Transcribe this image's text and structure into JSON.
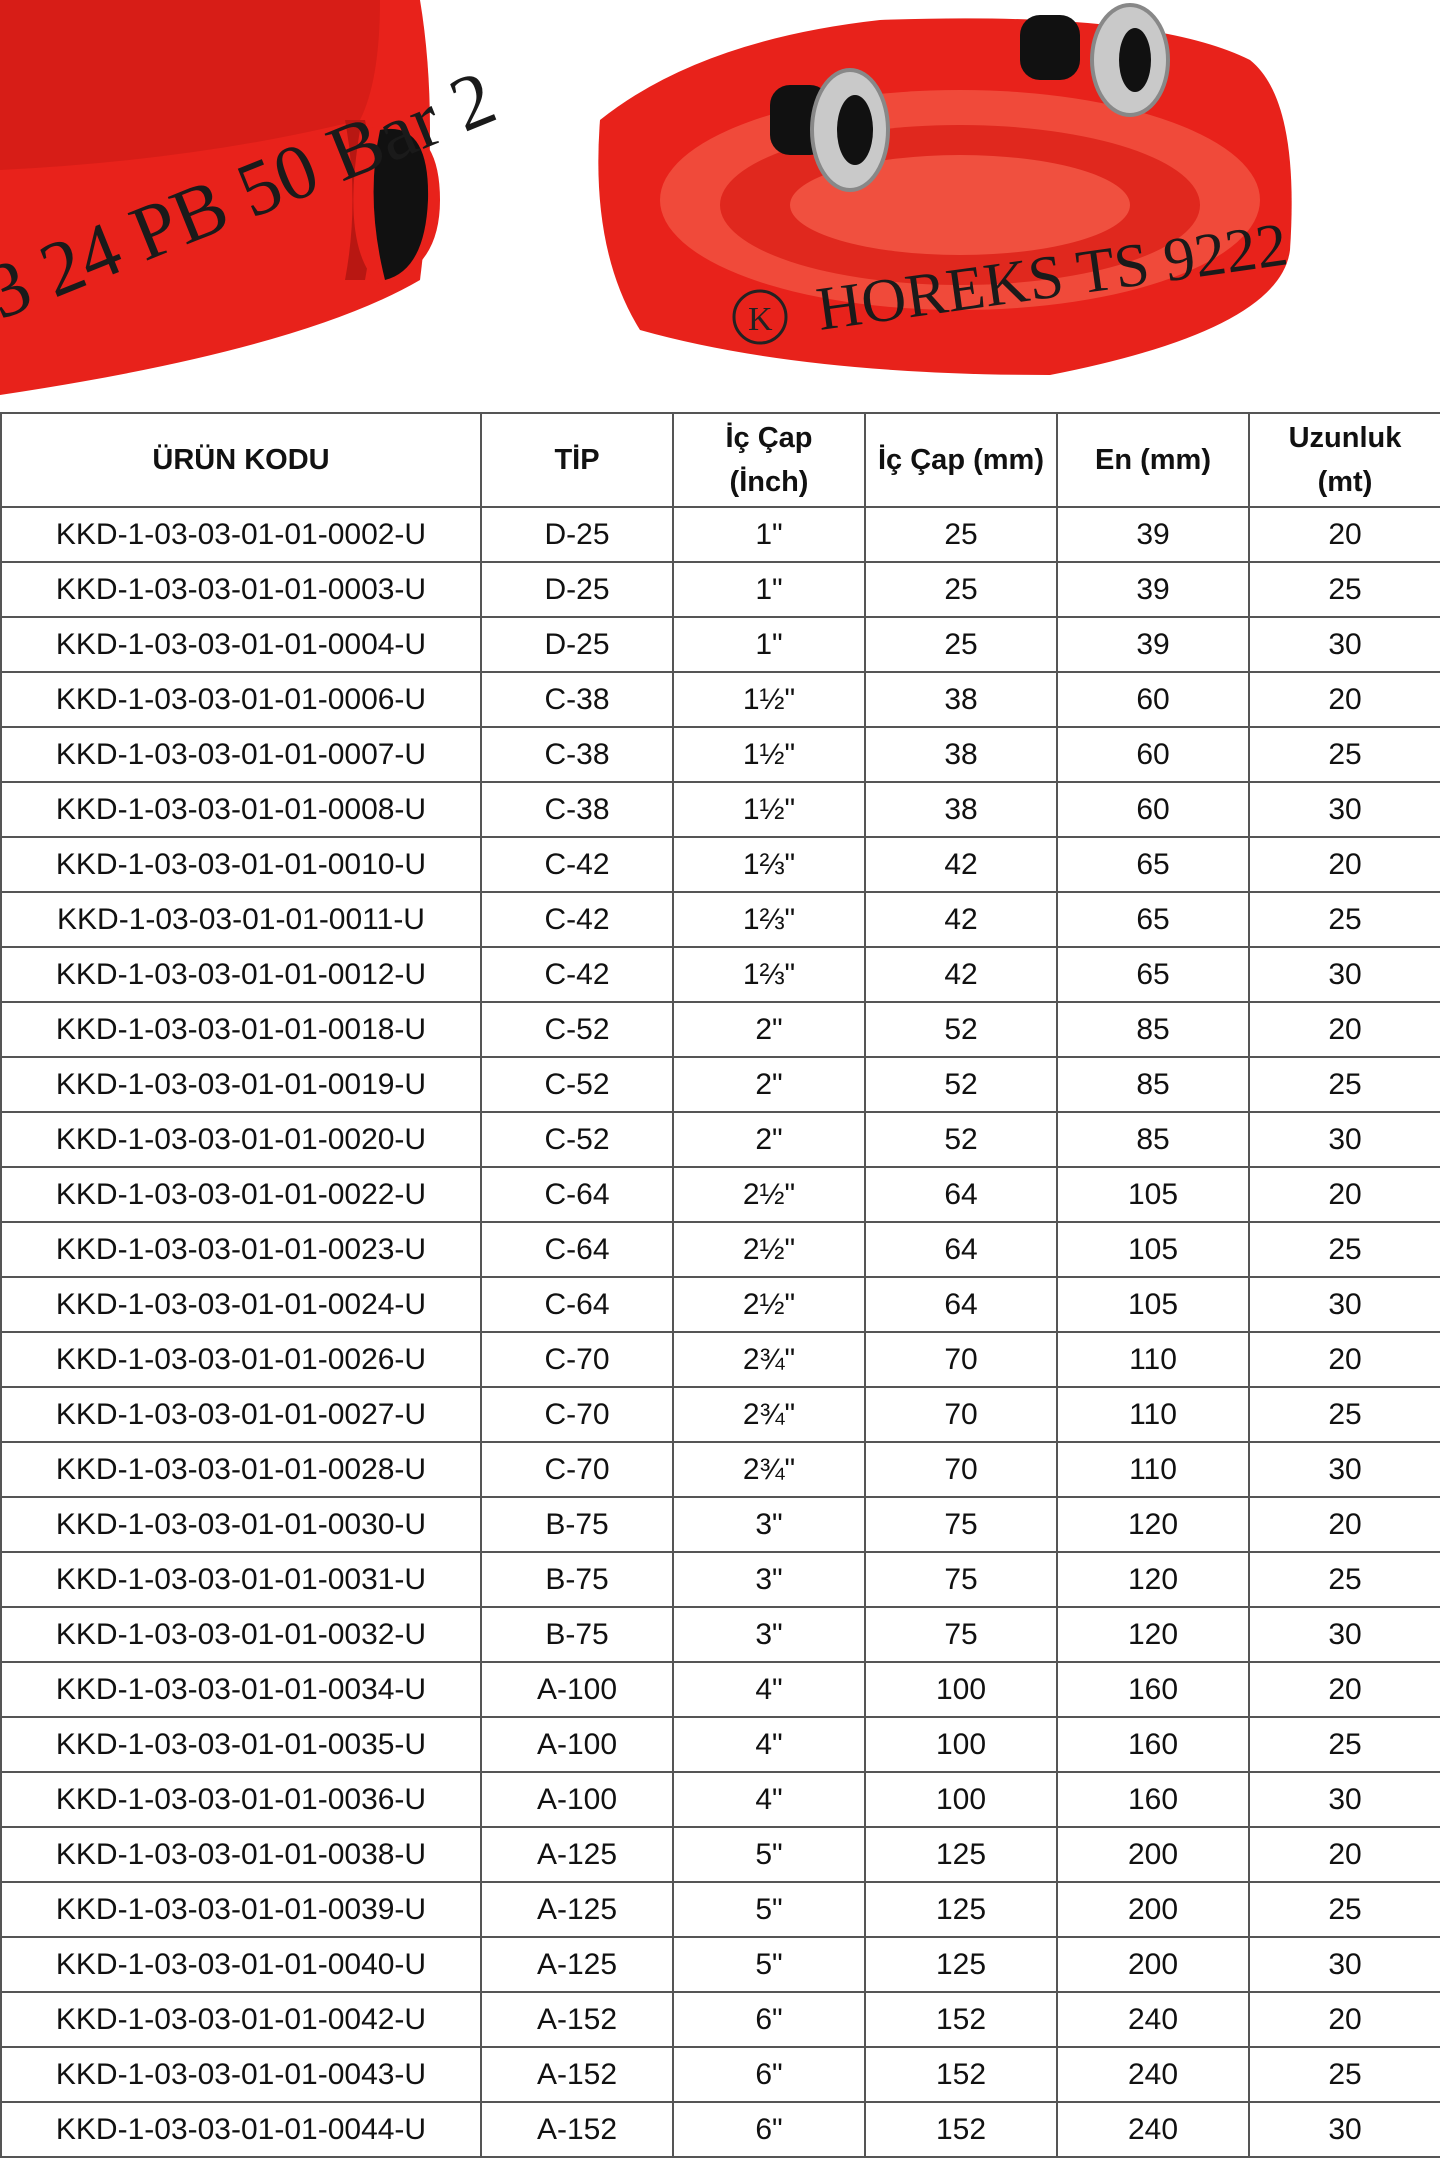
{
  "photo": {
    "left_hose_print": "3 24 PB 50 Bar 2",
    "right_hose_print": "HOREKS TS 9222",
    "logo_letters": "K",
    "hose_color": "#f0261e"
  },
  "table": {
    "headers": [
      "ÜRÜN KODU",
      "TİP",
      "İç Çap (İnch)",
      "İç Çap (mm)",
      "En (mm)",
      "Uzunluk (mt)"
    ],
    "rows": [
      [
        "KKD-1-03-03-01-01-0002-U",
        "D-25",
        "1\"",
        "25",
        "39",
        "20"
      ],
      [
        "KKD-1-03-03-01-01-0003-U",
        "D-25",
        "1\"",
        "25",
        "39",
        "25"
      ],
      [
        "KKD-1-03-03-01-01-0004-U",
        "D-25",
        "1\"",
        "25",
        "39",
        "30"
      ],
      [
        "KKD-1-03-03-01-01-0006-U",
        "C-38",
        "1½\"",
        "38",
        "60",
        "20"
      ],
      [
        "KKD-1-03-03-01-01-0007-U",
        "C-38",
        "1½\"",
        "38",
        "60",
        "25"
      ],
      [
        "KKD-1-03-03-01-01-0008-U",
        "C-38",
        "1½\"",
        "38",
        "60",
        "30"
      ],
      [
        "KKD-1-03-03-01-01-0010-U",
        "C-42",
        "1⅔\"",
        "42",
        "65",
        "20"
      ],
      [
        "KKD-1-03-03-01-01-0011-U",
        "C-42",
        "1⅔\"",
        "42",
        "65",
        "25"
      ],
      [
        "KKD-1-03-03-01-01-0012-U",
        "C-42",
        "1⅔\"",
        "42",
        "65",
        "30"
      ],
      [
        "KKD-1-03-03-01-01-0018-U",
        "C-52",
        "2\"",
        "52",
        "85",
        "20"
      ],
      [
        "KKD-1-03-03-01-01-0019-U",
        "C-52",
        "2\"",
        "52",
        "85",
        "25"
      ],
      [
        "KKD-1-03-03-01-01-0020-U",
        "C-52",
        "2\"",
        "52",
        "85",
        "30"
      ],
      [
        "KKD-1-03-03-01-01-0022-U",
        "C-64",
        "2½\"",
        "64",
        "105",
        "20"
      ],
      [
        "KKD-1-03-03-01-01-0023-U",
        "C-64",
        "2½\"",
        "64",
        "105",
        "25"
      ],
      [
        "KKD-1-03-03-01-01-0024-U",
        "C-64",
        "2½\"",
        "64",
        "105",
        "30"
      ],
      [
        "KKD-1-03-03-01-01-0026-U",
        "C-70",
        "2¾\"",
        "70",
        "110",
        "20"
      ],
      [
        "KKD-1-03-03-01-01-0027-U",
        "C-70",
        "2¾\"",
        "70",
        "110",
        "25"
      ],
      [
        "KKD-1-03-03-01-01-0028-U",
        "C-70",
        "2¾\"",
        "70",
        "110",
        "30"
      ],
      [
        "KKD-1-03-03-01-01-0030-U",
        "B-75",
        "3\"",
        "75",
        "120",
        "20"
      ],
      [
        "KKD-1-03-03-01-01-0031-U",
        "B-75",
        "3\"",
        "75",
        "120",
        "25"
      ],
      [
        "KKD-1-03-03-01-01-0032-U",
        "B-75",
        "3\"",
        "75",
        "120",
        "30"
      ],
      [
        "KKD-1-03-03-01-01-0034-U",
        "A-100",
        "4\"",
        "100",
        "160",
        "20"
      ],
      [
        "KKD-1-03-03-01-01-0035-U",
        "A-100",
        "4\"",
        "100",
        "160",
        "25"
      ],
      [
        "KKD-1-03-03-01-01-0036-U",
        "A-100",
        "4\"",
        "100",
        "160",
        "30"
      ],
      [
        "KKD-1-03-03-01-01-0038-U",
        "A-125",
        "5\"",
        "125",
        "200",
        "20"
      ],
      [
        "KKD-1-03-03-01-01-0039-U",
        "A-125",
        "5\"",
        "125",
        "200",
        "25"
      ],
      [
        "KKD-1-03-03-01-01-0040-U",
        "A-125",
        "5\"",
        "125",
        "200",
        "30"
      ],
      [
        "KKD-1-03-03-01-01-0042-U",
        "A-152",
        "6\"",
        "152",
        "240",
        "20"
      ],
      [
        "KKD-1-03-03-01-01-0043-U",
        "A-152",
        "6\"",
        "152",
        "240",
        "25"
      ],
      [
        "KKD-1-03-03-01-01-0044-U",
        "A-152",
        "6\"",
        "152",
        "240",
        "30"
      ]
    ]
  }
}
